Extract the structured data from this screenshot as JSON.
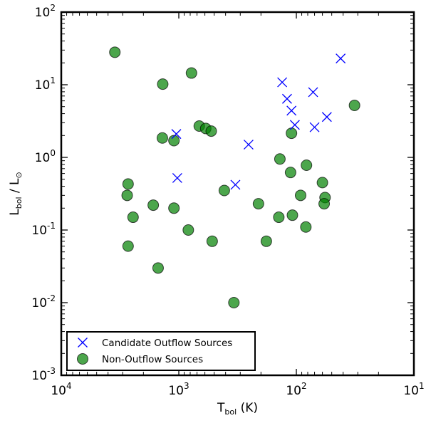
{
  "chart_data": {
    "type": "scatter",
    "title": "",
    "xlabel": {
      "main": "T",
      "sub": "bol",
      "unit": " (K)"
    },
    "ylabel": {
      "main": "L",
      "sub": "bol",
      "sep": " / L",
      "sub2": "⊙"
    },
    "xscale": "log",
    "yscale": "log",
    "xlim": [
      10000,
      10
    ],
    "ylim": [
      0.001,
      100
    ],
    "x_axis_reversed": true,
    "grid": false,
    "legend_position": "lower-left",
    "x_ticks": [
      {
        "value": 10000,
        "base": "10",
        "exp": "4"
      },
      {
        "value": 1000,
        "base": "10",
        "exp": "3"
      },
      {
        "value": 100,
        "base": "10",
        "exp": "2"
      },
      {
        "value": 10,
        "base": "10",
        "exp": "1"
      }
    ],
    "y_ticks": [
      {
        "value": 100,
        "base": "10",
        "exp": "2"
      },
      {
        "value": 10,
        "base": "10",
        "exp": "1"
      },
      {
        "value": 1,
        "base": "10",
        "exp": "0"
      },
      {
        "value": 0.1,
        "base": "10",
        "exp": "-1"
      },
      {
        "value": 0.01,
        "base": "10",
        "exp": "-2"
      },
      {
        "value": 0.001,
        "base": "10",
        "exp": "-3"
      }
    ],
    "series": [
      {
        "name": "Candidate Outflow Sources",
        "marker": "x",
        "color": "#0000ff",
        "points": [
          [
            1050,
            2.1
          ],
          [
            1030,
            0.52
          ],
          [
            330,
            0.42
          ],
          [
            255,
            1.5
          ],
          [
            132,
            10.8
          ],
          [
            120,
            6.4
          ],
          [
            110,
            4.4
          ],
          [
            103,
            2.8
          ],
          [
            72,
            7.9
          ],
          [
            70,
            2.6
          ],
          [
            55,
            3.6
          ],
          [
            42,
            23
          ]
        ]
      },
      {
        "name": "Non-Outflow Sources",
        "marker": "o",
        "color": "#008000",
        "points": [
          [
            3500,
            28
          ],
          [
            1370,
            10.2
          ],
          [
            780,
            14.5
          ],
          [
            1380,
            1.85
          ],
          [
            1100,
            1.7
          ],
          [
            670,
            2.7
          ],
          [
            590,
            2.5
          ],
          [
            530,
            2.3
          ],
          [
            2700,
            0.43
          ],
          [
            2750,
            0.3
          ],
          [
            2450,
            0.15
          ],
          [
            1650,
            0.22
          ],
          [
            1100,
            0.2
          ],
          [
            830,
            0.1
          ],
          [
            2700,
            0.06
          ],
          [
            1500,
            0.03
          ],
          [
            520,
            0.07
          ],
          [
            410,
            0.35
          ],
          [
            210,
            0.23
          ],
          [
            180,
            0.07
          ],
          [
            340,
            0.01
          ],
          [
            138,
            0.95
          ],
          [
            112,
            0.62
          ],
          [
            110,
            2.15
          ],
          [
            82,
            0.78
          ],
          [
            92,
            0.3
          ],
          [
            108,
            0.16
          ],
          [
            141,
            0.15
          ],
          [
            83,
            0.11
          ],
          [
            60,
            0.45
          ],
          [
            57,
            0.28
          ],
          [
            58,
            0.23
          ],
          [
            32,
            5.2
          ]
        ]
      }
    ]
  }
}
